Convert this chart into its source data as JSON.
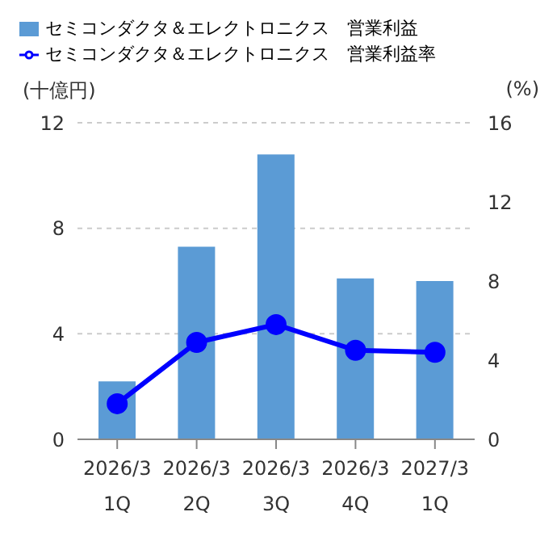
{
  "chart_data": {
    "type": "bar",
    "categories": [
      "2026/3\n1Q",
      "2026/3\n2Q",
      "2026/3\n3Q",
      "2026/3\n4Q",
      "2027/3\n1Q"
    ],
    "series": [
      {
        "name": "セミコンダクタ＆エレクトロニクス　営業利益",
        "color": "#5b9bd5",
        "values": [
          2.2,
          7.3,
          10.8,
          6.1,
          6.0
        ]
      },
      {
        "name": "セミコンダクタ＆エレクトロニクス　営業利益率",
        "type": "line",
        "axis": "y2",
        "color": "#0000ff",
        "values": [
          1.8,
          4.9,
          5.8,
          4.5,
          4.4
        ]
      }
    ],
    "ylabel": "(十億円)",
    "y2label": "(%)",
    "ylim": [
      0,
      12
    ],
    "yticks": [
      0,
      4,
      8,
      12
    ],
    "y2lim": [
      0,
      16
    ],
    "y2ticks": [
      0,
      4,
      8,
      12,
      16
    ],
    "grid": "y",
    "legend": "top left",
    "marker": "circle",
    "line_style": "solid"
  }
}
